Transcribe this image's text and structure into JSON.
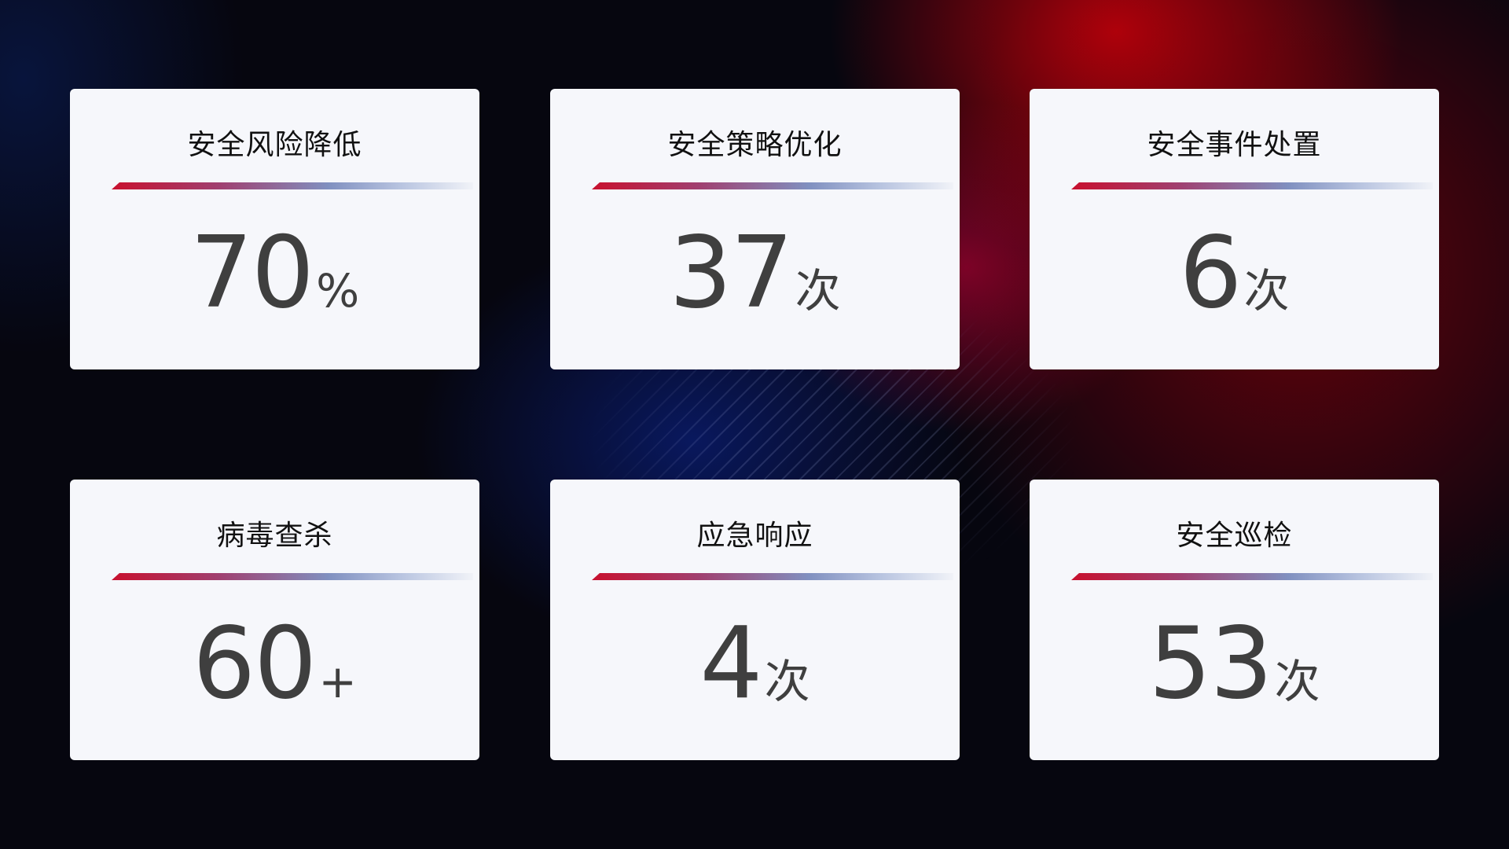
{
  "cards": [
    {
      "title": "安全风险降低",
      "value": "70",
      "unit": "%"
    },
    {
      "title": "安全策略优化",
      "value": "37",
      "unit": "次"
    },
    {
      "title": "安全事件处置",
      "value": "6",
      "unit": "次"
    },
    {
      "title": "病毒查杀",
      "value": "60",
      "unit": "+"
    },
    {
      "title": "应急响应",
      "value": "4",
      "unit": "次"
    },
    {
      "title": "安全巡检",
      "value": "53",
      "unit": "次"
    }
  ],
  "colors": {
    "accent_red": "#c8102e",
    "accent_blue": "#8090c0",
    "card_bg": "#f6f7fb",
    "value_text": "#3f3f3f"
  }
}
